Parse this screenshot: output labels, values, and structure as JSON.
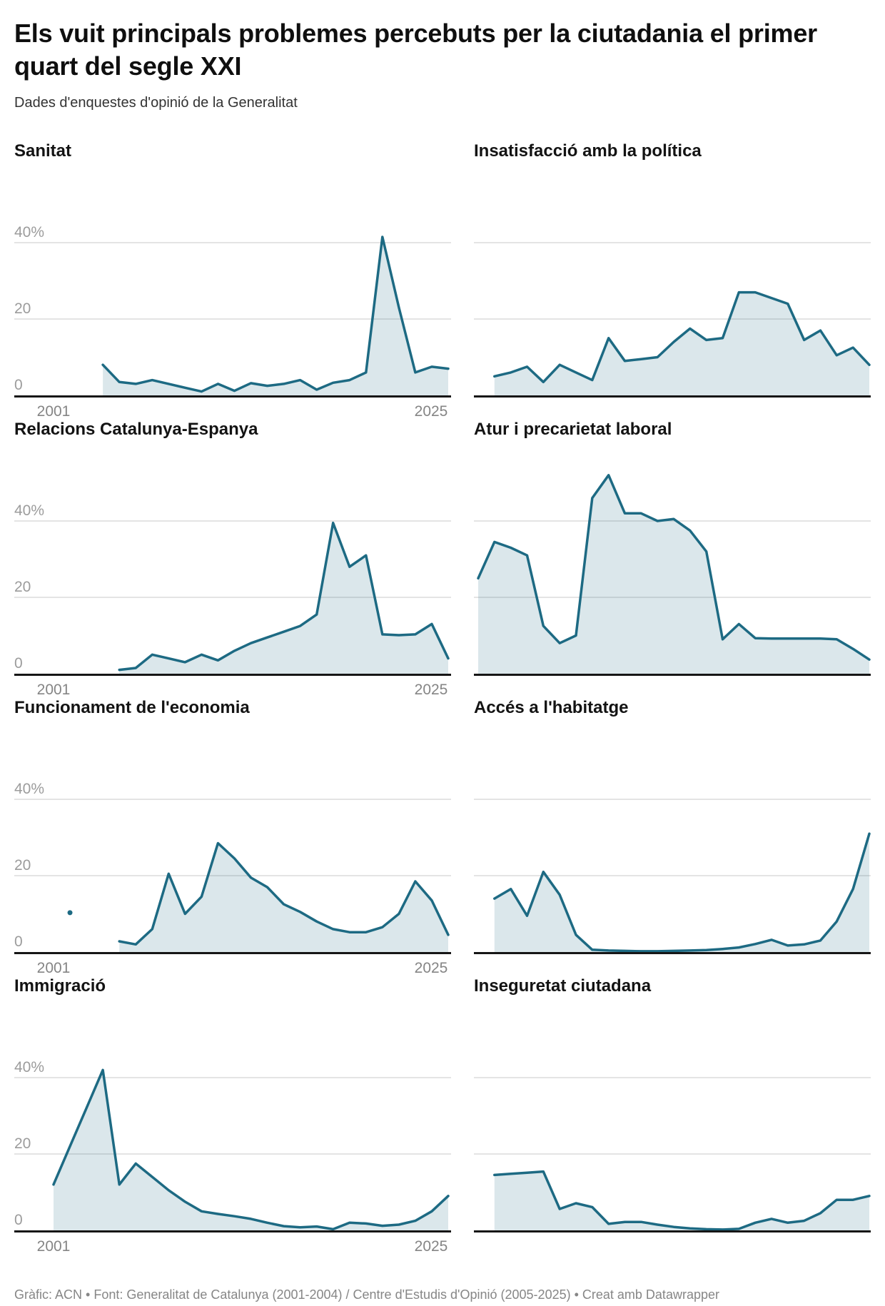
{
  "page": {
    "title": "Els vuit principals problemes percebuts per la ciutadania el primer quart del segle XXI",
    "subtitle": "Dades d'enquestes d'opinió de la Generalitat",
    "footer": "Gràfic: ACN • Font: Generalitat de Catalunya (2001-2004) / Centre d'Estudis d'Opinió (2005-2025) • Creat amb Datawrapper"
  },
  "style": {
    "line_color": "#1d6a83",
    "area_color": "rgba(29,106,131,0.16)",
    "grid_color": "#dcdcdc",
    "baseline_color": "#161616",
    "ytick_color": "#9c9c9c",
    "year_color": "#858585"
  },
  "chart_data": {
    "type": "area",
    "title": "Els vuit principals problemes percebuts per la ciutadania el primer quart del segle XXI",
    "x_range": [
      2001,
      2025
    ],
    "ylim": [
      0,
      52
    ],
    "grid": "horizontal",
    "legend": "none",
    "y_ticks": [
      {
        "value": 40,
        "label": "40%"
      },
      {
        "value": 20,
        "label": "20"
      },
      {
        "value": 0,
        "label": "0"
      }
    ],
    "x_tick_labels": [
      "2001",
      "2025"
    ],
    "charts": [
      {
        "title": "Sanitat",
        "axis_labels": true,
        "start_year": 2004,
        "values": [
          8,
          3.5,
          3,
          4,
          3,
          2,
          1,
          3,
          1.2,
          3.2,
          2.5,
          3,
          4,
          1.5,
          3.3,
          4,
          6,
          41.5,
          23,
          6,
          7.5,
          7
        ]
      },
      {
        "title": "Insatisfacció amb la política",
        "axis_labels": false,
        "start_year": 2002,
        "values": [
          5,
          6,
          7.5,
          3.5,
          8,
          6,
          4,
          15,
          9,
          9.5,
          10,
          14,
          17.5,
          14.5,
          15,
          27,
          27,
          25.5,
          24,
          14.5,
          17,
          10.5,
          12.5,
          8
        ]
      },
      {
        "title": "Relacions Catalunya-Espanya",
        "axis_labels": true,
        "start_year": 2005,
        "values": [
          1,
          1.5,
          5,
          4,
          3,
          5,
          3.5,
          6,
          8,
          9.5,
          11,
          12.5,
          15.5,
          39.5,
          28,
          31,
          10.3,
          10.1,
          10.3,
          13,
          4
        ]
      },
      {
        "title": "Atur i precarietat laboral",
        "axis_labels": false,
        "start_year": 2001,
        "values": [
          25,
          34.5,
          33,
          31,
          12.5,
          8,
          10,
          46,
          52,
          42,
          42,
          40,
          40.5,
          37.5,
          32,
          9,
          13,
          9.3,
          9.2,
          9.2,
          9.2,
          9.2,
          9,
          6.5,
          3.7
        ]
      },
      {
        "title": "Funcionament de l'economia",
        "axis_labels": true,
        "start_year": 2005,
        "values": [
          2.8,
          2,
          6,
          20.5,
          10,
          14.5,
          28.5,
          24.5,
          19.5,
          17,
          12.5,
          10.5,
          8,
          6,
          5.2,
          5.2,
          6.5,
          10,
          18.5,
          13.5,
          4.5
        ],
        "isolated_point": {
          "year": 2002,
          "value": 10.3
        }
      },
      {
        "title": "Accés a l'habitatge",
        "axis_labels": false,
        "start_year": 2002,
        "values": [
          14,
          16.5,
          9.5,
          21,
          15,
          4.5,
          0.6,
          0.4,
          0.3,
          0.2,
          0.2,
          0.3,
          0.4,
          0.5,
          0.8,
          1.2,
          2.1,
          3.2,
          1.7,
          2,
          3,
          8,
          16.5,
          31
        ]
      },
      {
        "title": "Immigració",
        "axis_labels": true,
        "start_year": 2001,
        "values": [
          12,
          22,
          32,
          42,
          12,
          17.5,
          14,
          10.5,
          7.5,
          5,
          4.3,
          3.7,
          3,
          2,
          1.1,
          0.8,
          1,
          0.3,
          2,
          1.8,
          1.2,
          1.5,
          2.5,
          5,
          9
        ]
      },
      {
        "title": "Inseguretat ciutadana",
        "axis_labels": false,
        "start_year": 2002,
        "values": [
          14.5,
          14.8,
          15.1,
          15.4,
          5.6,
          7.1,
          6.1,
          1.7,
          2.2,
          2.2,
          1.5,
          0.9,
          0.5,
          0.3,
          0.2,
          0.4,
          2,
          3,
          2,
          2.5,
          4.5,
          8,
          8,
          9
        ]
      }
    ]
  }
}
